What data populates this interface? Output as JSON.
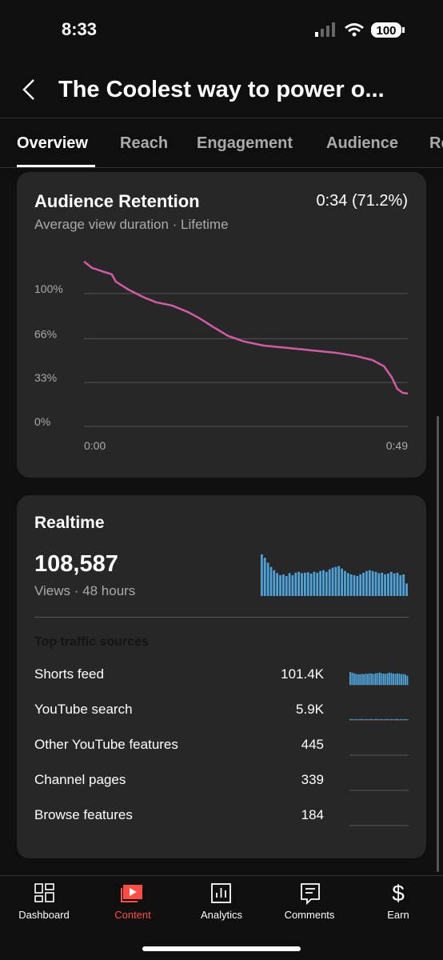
{
  "status": {
    "time": "8:33",
    "battery": "100"
  },
  "header": {
    "title": "The Coolest way to power o..."
  },
  "tabs": [
    "Overview",
    "Reach",
    "Engagement",
    "Audience",
    "Re"
  ],
  "retention": {
    "title": "Audience Retention",
    "summary": "0:34 (71.2%)",
    "subtitle": "Average view duration · Lifetime",
    "chart_data": {
      "type": "line",
      "color": "#d35ba6",
      "grid": true,
      "x": [
        0,
        1.2,
        3.0,
        4.2,
        4.8,
        6.7,
        9.1,
        10.9,
        13.3,
        15.7,
        17.5,
        19.4,
        21.8,
        24.2,
        27.2,
        30.9,
        34.5,
        38.1,
        41.1,
        43.6,
        45.4,
        46.6,
        47.4,
        48.2,
        49
      ],
      "values": [
        124.1,
        119.3,
        116.3,
        114.5,
        109.0,
        103.0,
        97.0,
        93.4,
        91.0,
        86.1,
        81.3,
        75.3,
        68.1,
        63.9,
        60.8,
        59.0,
        57.2,
        55.4,
        53.0,
        50.0,
        45.2,
        36.7,
        28.3,
        25.3,
        24.7
      ],
      "xlim": [
        0,
        49
      ],
      "xticks": [
        {
          "value": 0,
          "label": "0:00"
        },
        {
          "value": 49,
          "label": "0:49"
        }
      ],
      "ylim": [
        0,
        130
      ],
      "yticks": [
        {
          "value": 0,
          "label": "0%"
        },
        {
          "value": 33,
          "label": "33%"
        },
        {
          "value": 66,
          "label": "66%"
        },
        {
          "value": 100,
          "label": "100%"
        }
      ]
    }
  },
  "realtime": {
    "title": "Realtime",
    "views": "108,587",
    "subtitle": "Views · 48 hours",
    "chart_data": {
      "type": "bar",
      "color": "#4fa3d9",
      "ylim": [
        0,
        100
      ],
      "values": [
        100,
        92,
        80,
        70,
        62,
        55,
        50,
        52,
        48,
        55,
        50,
        56,
        58,
        55,
        56,
        57,
        54,
        58,
        56,
        60,
        62,
        58,
        64,
        68,
        70,
        72,
        66,
        60,
        55,
        52,
        50,
        48,
        52,
        56,
        60,
        62,
        60,
        58,
        55,
        56,
        52,
        54,
        58,
        54,
        56,
        50,
        52,
        30
      ]
    }
  },
  "traffic_sources": {
    "title": "Top traffic sources",
    "ylim": [
      0,
      100
    ],
    "rows": [
      {
        "label": "Shorts feed",
        "value": 101400,
        "value_label": "101.4K",
        "spark": [
          40,
          38,
          36,
          34,
          33,
          33,
          34,
          33,
          35,
          34,
          36,
          35,
          34,
          36,
          37,
          38,
          36,
          35,
          34,
          36,
          38,
          37,
          35,
          34,
          36,
          35,
          33,
          34,
          32,
          28
        ]
      },
      {
        "label": "YouTube search",
        "value": 5900,
        "value_label": "5.9K",
        "spark": [
          3,
          3,
          2,
          3,
          2,
          3,
          3,
          2,
          3,
          2,
          3,
          3,
          2,
          3,
          3,
          2,
          3,
          2,
          3,
          3,
          2,
          3,
          2,
          3,
          3,
          2,
          3,
          2,
          3,
          2
        ]
      },
      {
        "label": "Other YouTube features",
        "value": 445,
        "value_label": "445"
      },
      {
        "label": "Channel pages",
        "value": 339,
        "value_label": "339"
      },
      {
        "label": "Browse features",
        "value": 184,
        "value_label": "184"
      }
    ]
  },
  "nav": [
    "Dashboard",
    "Content",
    "Analytics",
    "Comments",
    "Earn"
  ]
}
